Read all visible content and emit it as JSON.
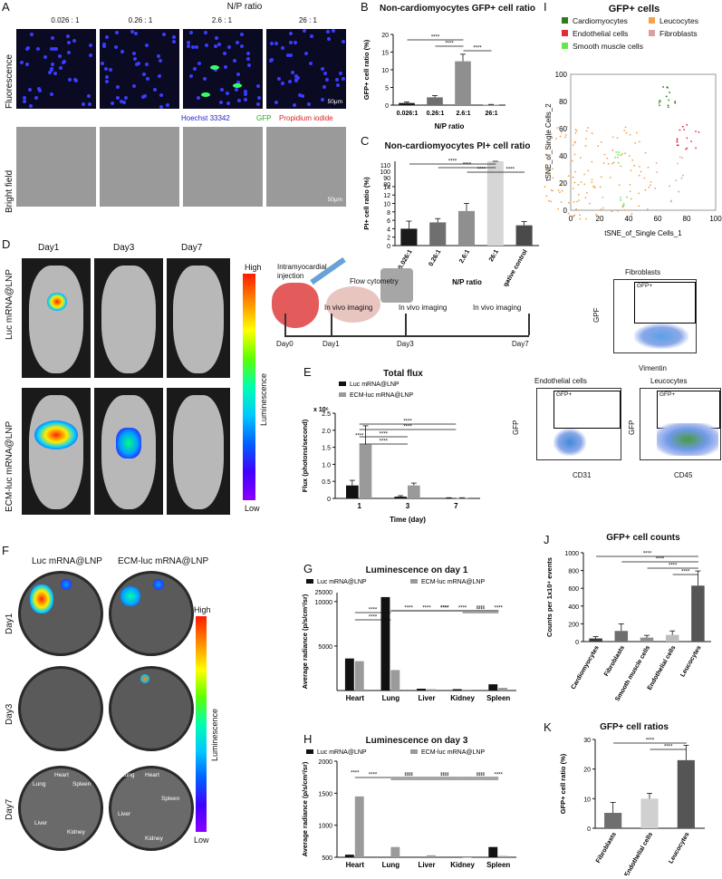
{
  "labels": {
    "A": "A",
    "B": "B",
    "C": "C",
    "D": "D",
    "E": "E",
    "F": "F",
    "G": "G",
    "H": "H",
    "I": "I",
    "J": "J",
    "K": "K"
  },
  "panelA": {
    "header": "N/P ratio",
    "ratios": [
      "0.026 : 1",
      "0.26 : 1",
      "2.6 : 1",
      "26 : 1"
    ],
    "row1": "Fluorescence",
    "row2": "Bright field",
    "scale": "50μm",
    "stain_hoechst": "Hoechst 33342",
    "stain_gfp": "GFP",
    "stain_pi": "Propidium iodide"
  },
  "panelD": {
    "days": [
      "Day1",
      "Day3",
      "Day7"
    ],
    "rows": [
      "Luc mRNA@LNP",
      "ECM-luc mRNA@LNP"
    ],
    "cbar_high": "High",
    "cbar_low": "Low",
    "cbar_label": "Luminescence",
    "timeline": {
      "injection": "Intramyocardial injection",
      "flow": "Flow cytometry",
      "imaging": "In vivo imaging",
      "days": [
        "Day0",
        "Day1",
        "Day3",
        "Day7"
      ]
    }
  },
  "panelF": {
    "cols": [
      "Luc mRNA@LNP",
      "ECM-luc mRNA@LNP"
    ],
    "rows": [
      "Day1",
      "Day3",
      "Day7"
    ],
    "organs": [
      "Heart",
      "Lung",
      "Spleen",
      "Liver",
      "Kidney"
    ],
    "cbar_high": "High",
    "cbar_low": "Low",
    "cbar_label": "Luminescence"
  },
  "panelI": {
    "title": "GFP+ cells",
    "legend": [
      {
        "name": "Cardiomyocytes",
        "color": "#2e7d1a"
      },
      {
        "name": "Leucocytes",
        "color": "#f5a04a"
      },
      {
        "name": "Endothelial cells",
        "color": "#e8283a"
      },
      {
        "name": "Fibroblasts",
        "color": "#d8a0a8"
      },
      {
        "name": "Smooth muscle cells",
        "color": "#66e64a"
      }
    ],
    "xlabel": "tSNE_of_Single Cells_1",
    "ylabel": "tSNE_of_Single Cells_2",
    "xticks": [
      "0",
      "20",
      "40",
      "60",
      "80",
      "100"
    ],
    "yticks": [
      "0",
      "20",
      "40",
      "60",
      "80",
      "100"
    ],
    "facs": [
      {
        "title": "Fibroblasts",
        "gate": "GFP+",
        "ylabel": "GPF",
        "xlabel": "Vimentin"
      },
      {
        "title": "Endothelial cells",
        "gate": "GFP+",
        "ylabel": "GFP",
        "xlabel": "CD31"
      },
      {
        "title": "Leucocytes",
        "gate": "GFP+",
        "ylabel": "GFP",
        "xlabel": "CD45"
      }
    ],
    "facs_ticks_y": [
      "10⁵",
      "10⁴",
      "10³",
      "0",
      "-10³"
    ],
    "facs_ticks_x": [
      "-10³",
      "10³",
      "10⁴",
      "10⁵"
    ]
  },
  "chart_data": [
    {
      "id": "B",
      "type": "bar",
      "title": "Non-cardiomyocytes GFP+ cell ratio",
      "xlabel": "N/P ratio",
      "ylabel": "GFP+ cell ratio (%)",
      "categories": [
        "0.026:1",
        "0.26:1",
        "2.6:1",
        "26:1"
      ],
      "values": [
        0.6,
        2.2,
        12.4,
        0.1
      ],
      "errors": [
        0.3,
        0.5,
        2.0,
        0.1
      ],
      "colors": [
        "#1a1a1a",
        "#6f6f6f",
        "#8f8f8f",
        "#bdbdbd"
      ],
      "ylim": [
        0,
        20
      ],
      "yticks": [
        "0",
        "5",
        "10",
        "15",
        "20"
      ],
      "sig": [
        "****",
        "****",
        "****"
      ]
    },
    {
      "id": "C",
      "type": "bar",
      "title": "Non-cardiomyocytes PI+ cell ratio",
      "xlabel": "N/P ratio",
      "ylabel": "PI+ cell ratio (%)",
      "categories": [
        "0.026:1",
        "0.26:1",
        "2.6:1",
        "26:1",
        "Negative control"
      ],
      "values": [
        4.0,
        5.5,
        8.2,
        88.0,
        4.8
      ],
      "errors": [
        1.8,
        0.9,
        1.8,
        3.0,
        0.9
      ],
      "colors": [
        "#1a1a1a",
        "#6f6f6f",
        "#8f8f8f",
        "#d6d6d6",
        "#4a4a4a"
      ],
      "yticks": [
        "0",
        "2",
        "4",
        "6",
        "8",
        "10",
        "12",
        "14",
        "80",
        "90",
        "100",
        "110"
      ],
      "sig": [
        "****",
        "****",
        "****",
        "****",
        "****"
      ]
    },
    {
      "id": "E",
      "type": "bar",
      "title": "Total flux",
      "xlabel": "Time (day)",
      "ylabel": "Flux (photons/second)",
      "yexp": "x 10⁶",
      "categories": [
        "1",
        "3",
        "7"
      ],
      "series": [
        {
          "name": "Luc mRNA@LNP",
          "values": [
            0.38,
            0.05,
            0.01
          ],
          "color": "#111111"
        },
        {
          "name": "ECM-luc mRNA@LNP",
          "values": [
            1.58,
            0.38,
            0.01
          ],
          "color": "#9a9a9a"
        }
      ],
      "errors": [
        [
          0.15,
          0.03,
          0.01
        ],
        [
          0.55,
          0.07,
          0.01
        ]
      ],
      "ylim": [
        0,
        2.5
      ],
      "yticks": [
        "0",
        "0.5",
        "1.0",
        "1.5",
        "2.0",
        "2.5"
      ],
      "sig": [
        "****",
        "****",
        "****",
        "****",
        "****",
        "****"
      ]
    },
    {
      "id": "G",
      "type": "bar",
      "title": "Luminescence on day 1",
      "ylabel": "Average radiance (p/s/cm²/sr)",
      "categories": [
        "Heart",
        "Lung",
        "Liver",
        "Kidney",
        "Spleen"
      ],
      "series": [
        {
          "name": "Luc mRNA@LNP",
          "values": [
            3600,
            10500,
            200,
            150,
            700
          ],
          "color": "#111111"
        },
        {
          "name": "ECM-luc mRNA@LNP",
          "values": [
            3300,
            2300,
            150,
            100,
            300
          ],
          "color": "#9a9a9a"
        }
      ],
      "yticks": [
        "5000",
        "10000",
        "25000"
      ],
      "sig": [
        "****",
        "****",
        "****",
        "****",
        "****",
        "****",
        "****",
        "****",
        "****",
        "****"
      ]
    },
    {
      "id": "H",
      "type": "bar",
      "title": "Luminescence on day 3",
      "ylabel": "Average radiance (p/s/cm²/sr)",
      "categories": [
        "Heart",
        "Lung",
        "Liver",
        "Kidney",
        "Spleen"
      ],
      "series": [
        {
          "name": "Luc mRNA@LNP",
          "values": [
            540,
            500,
            500,
            500,
            660
          ],
          "color": "#111111"
        },
        {
          "name": "ECM-luc mRNA@LNP",
          "values": [
            1450,
            660,
            530,
            500,
            520
          ],
          "color": "#9a9a9a"
        }
      ],
      "ylim": [
        500,
        2000
      ],
      "yticks": [
        "500",
        "1000",
        "1500",
        "2000"
      ],
      "sig": [
        "****",
        "****",
        "****",
        "****",
        "****",
        "****",
        "****",
        "****",
        "****"
      ]
    },
    {
      "id": "J",
      "type": "bar",
      "title": "GFP+ cell counts",
      "ylabel": "Counts per 1x10⁴ events",
      "categories": [
        "Cardiomyocytes",
        "Fibroblasts",
        "Smooth muscle cells",
        "Endothelial cells",
        "Leucocytes"
      ],
      "values": [
        35,
        120,
        45,
        75,
        630
      ],
      "errors": [
        20,
        80,
        25,
        45,
        165
      ],
      "colors": [
        "#3a3a3a",
        "#6f6f6f",
        "#8f8f8f",
        "#bdbdbd",
        "#555555"
      ],
      "ylim": [
        0,
        1000
      ],
      "yticks": [
        "0",
        "200",
        "400",
        "600",
        "800",
        "1000"
      ],
      "sig": [
        "****",
        "****",
        "****",
        "****"
      ]
    },
    {
      "id": "K",
      "type": "bar",
      "title": "GFP+ cell ratios",
      "ylabel": "GFP+ cell ratio (%)",
      "categories": [
        "Fibroblasts",
        "Endothelial cells",
        "Leucocytes"
      ],
      "values": [
        5.2,
        10.0,
        23.0
      ],
      "errors": [
        3.5,
        1.8,
        5.0
      ],
      "colors": [
        "#6f6f6f",
        "#d0d0d0",
        "#555555"
      ],
      "ylim": [
        0,
        30
      ],
      "yticks": [
        "0",
        "10",
        "20",
        "30"
      ],
      "sig": [
        "****",
        "****"
      ]
    }
  ]
}
